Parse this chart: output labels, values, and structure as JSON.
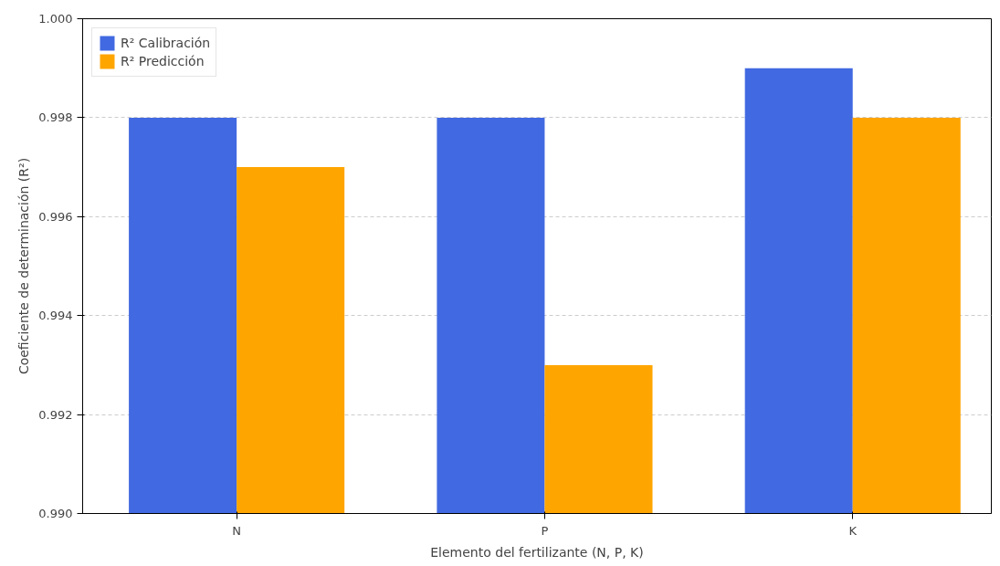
{
  "chart_data": {
    "type": "bar",
    "xlabel": "Elemento del fertilizante (N, P, K)",
    "ylabel": "Coeficiente de determinación (R²)",
    "categories": [
      "N",
      "P",
      "K"
    ],
    "series": [
      {
        "name": "R² Calibración",
        "color": "#4169e1",
        "values": [
          0.998,
          0.998,
          0.999
        ]
      },
      {
        "name": "R² Predicción",
        "color": "#ffa500",
        "values": [
          0.997,
          0.993,
          0.998
        ]
      }
    ],
    "ylim": [
      0.99,
      1.0
    ],
    "yticks": [
      {
        "value": 0.99,
        "label": "0.990"
      },
      {
        "value": 0.992,
        "label": "0.992"
      },
      {
        "value": 0.994,
        "label": "0.994"
      },
      {
        "value": 0.996,
        "label": "0.996"
      },
      {
        "value": 0.998,
        "label": "0.998"
      },
      {
        "value": 1.0,
        "label": "1.000"
      }
    ],
    "grid": "y",
    "legend": "top left"
  }
}
